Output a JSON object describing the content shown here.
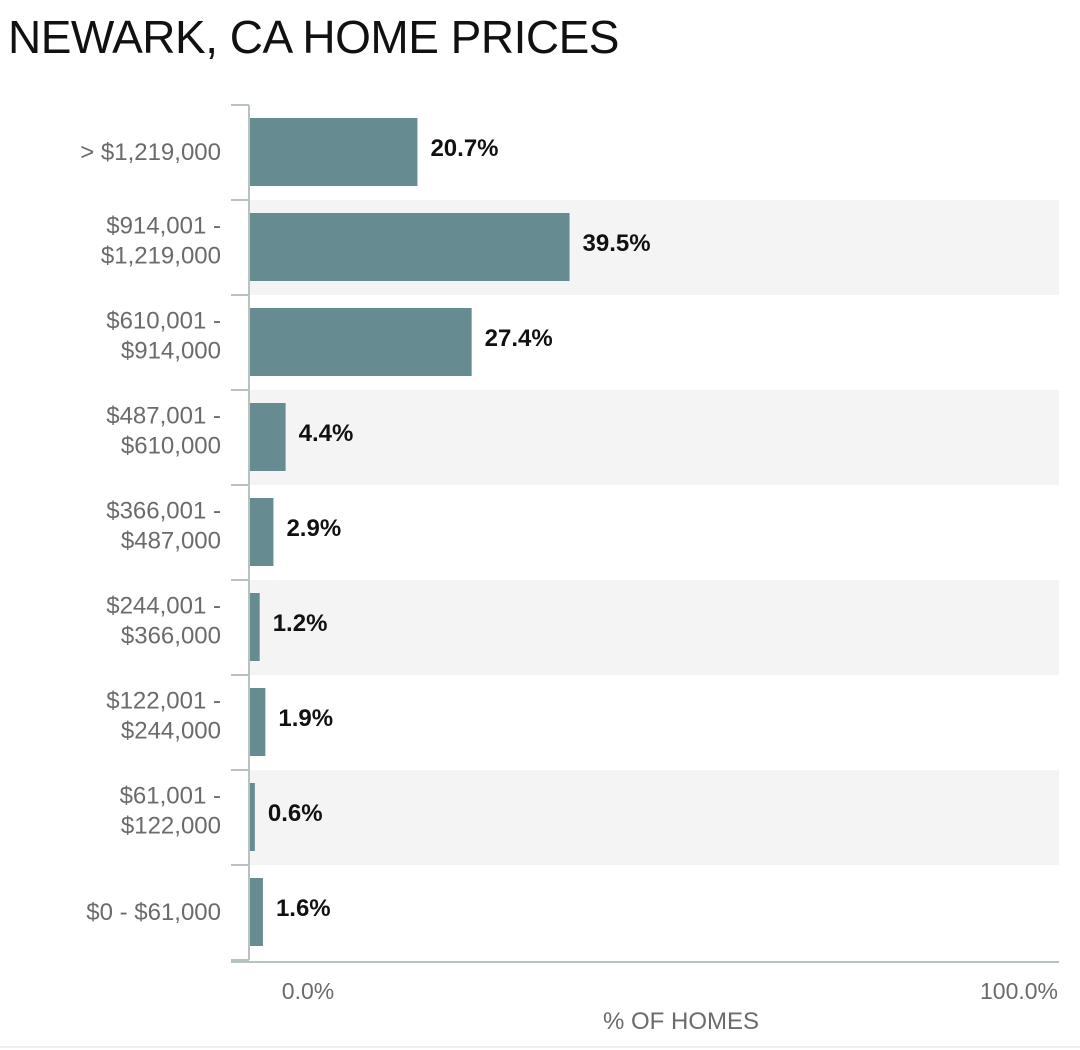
{
  "chart_data": {
    "type": "bar",
    "orientation": "horizontal",
    "title": "NEWARK, CA HOME PRICES",
    "xlabel": "% OF HOMES",
    "ylabel": "",
    "xlim": [
      0,
      100
    ],
    "x_ticks": [
      "0.0%",
      "100.0%"
    ],
    "categories": [
      [
        "> $1,219,000"
      ],
      [
        "$914,001 -",
        "$1,219,000"
      ],
      [
        "$610,001 -",
        "$914,000"
      ],
      [
        "$487,001 -",
        "$610,000"
      ],
      [
        "$366,001 -",
        "$487,000"
      ],
      [
        "$244,001 -",
        "$366,000"
      ],
      [
        "$122,001 -",
        "$244,000"
      ],
      [
        "$61,001 -",
        "$122,000"
      ],
      [
        "$0 - $61,000"
      ]
    ],
    "values": [
      20.7,
      39.5,
      27.4,
      4.4,
      2.9,
      1.2,
      1.9,
      0.6,
      1.6
    ],
    "value_labels": [
      "20.7%",
      "39.5%",
      "27.4%",
      "4.4%",
      "2.9%",
      "1.2%",
      "1.9%",
      "0.6%",
      "1.6%"
    ],
    "bar_color": "#668c91",
    "band_color": "#f4f4f4",
    "grid": false,
    "legend": "none"
  }
}
